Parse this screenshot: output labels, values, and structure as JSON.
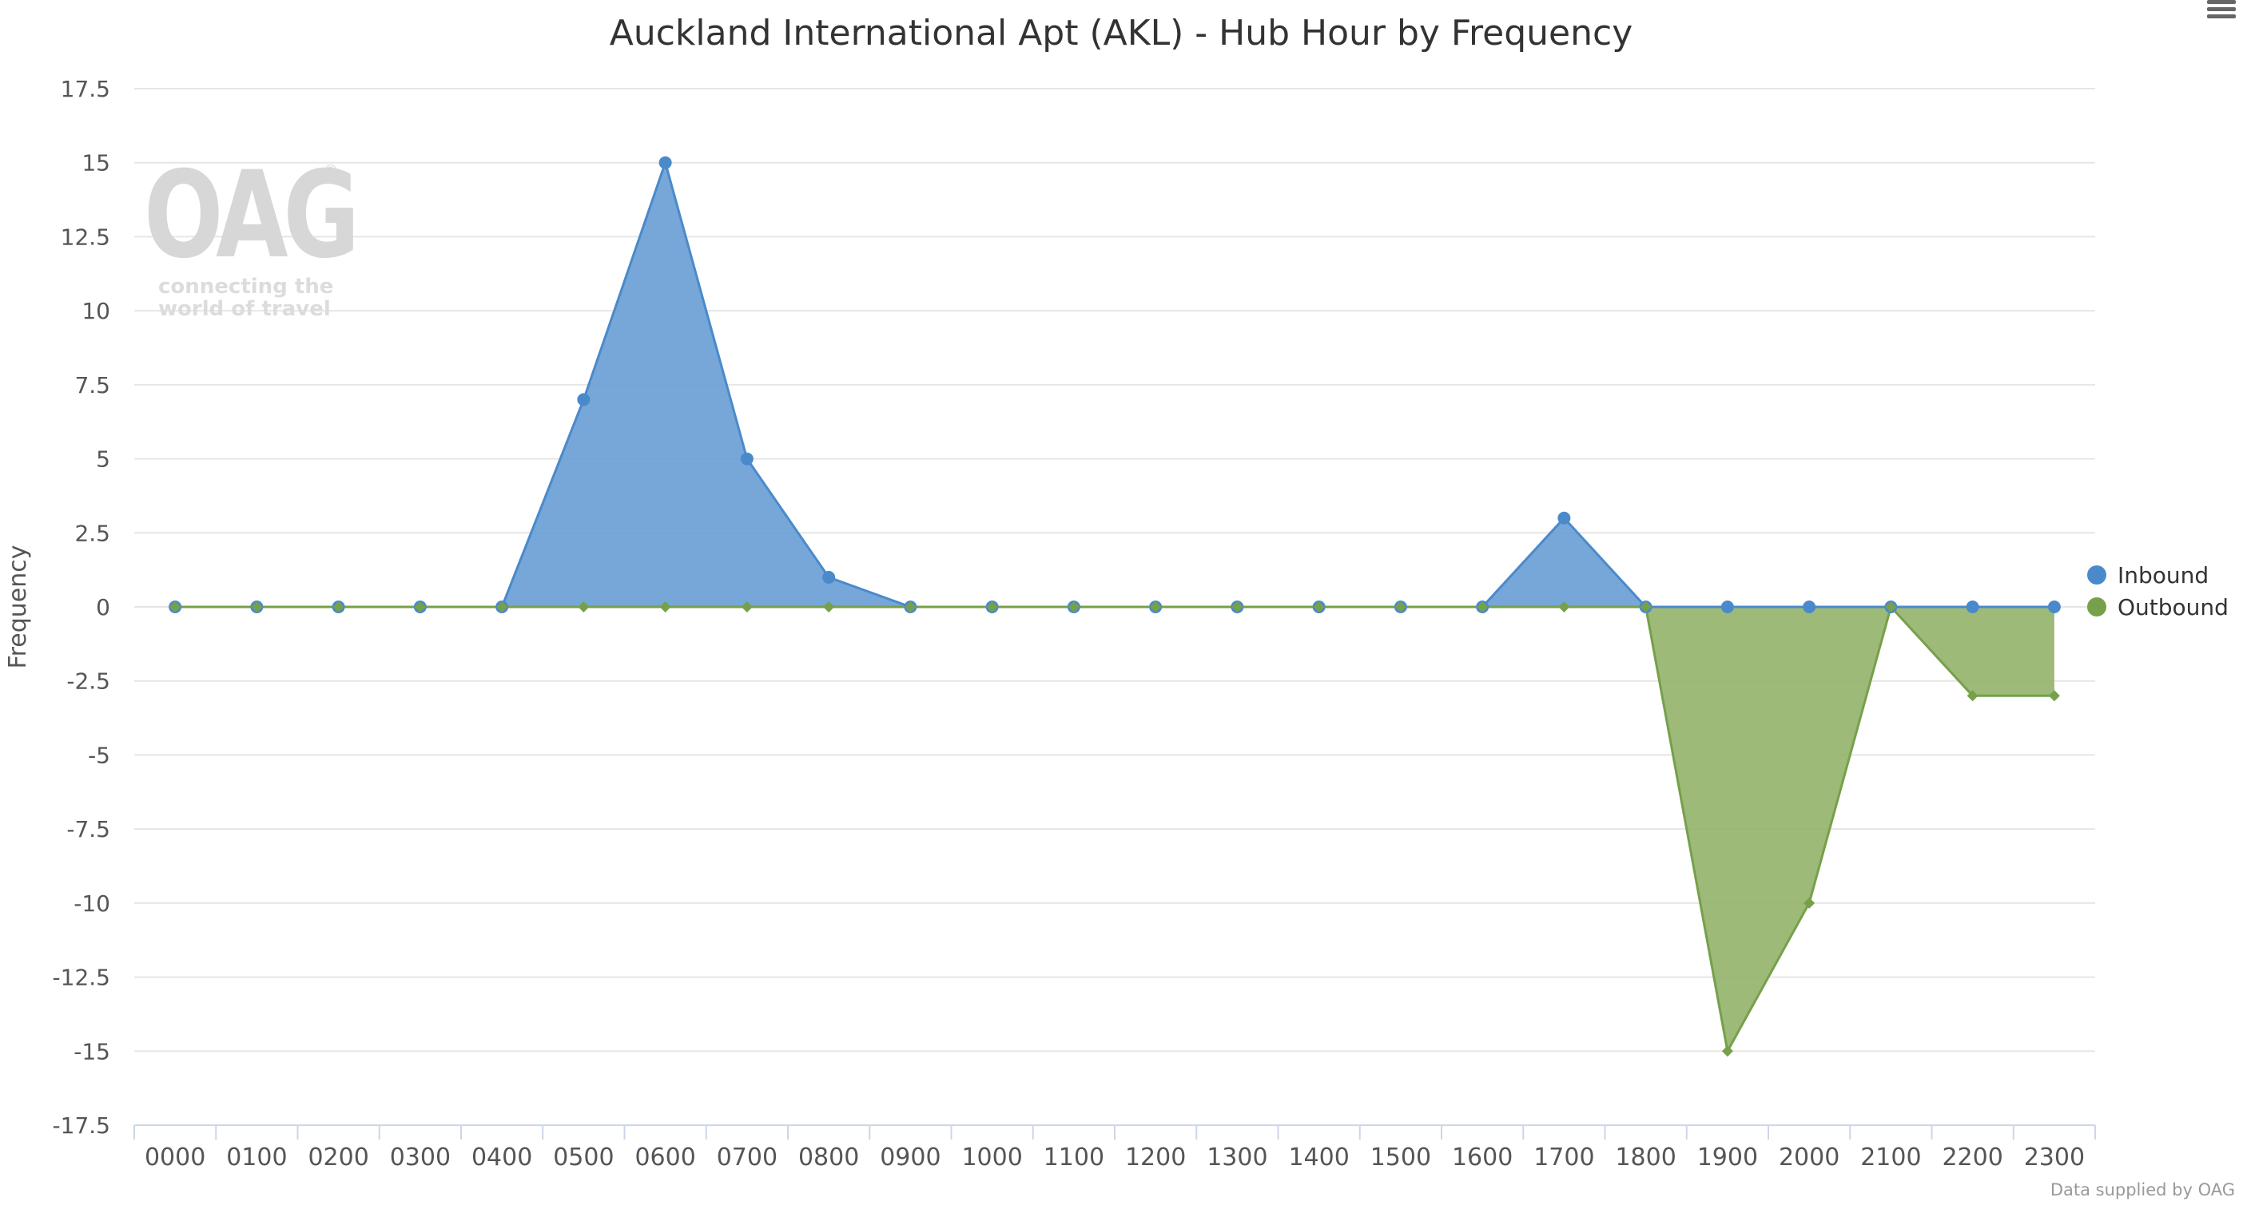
{
  "chart_data": {
    "type": "area",
    "title": "Auckland International Apt (AKL) - Hub Hour by Frequency",
    "xlabel": "",
    "ylabel": "Frequency",
    "ylim": [
      -17.5,
      17.5
    ],
    "yticks": [
      17.5,
      15,
      12.5,
      10,
      7.5,
      5,
      2.5,
      0,
      -2.5,
      -5,
      -7.5,
      -10,
      -12.5,
      -15,
      -17.5
    ],
    "ytick_labels": [
      "17.5",
      "15",
      "12.5",
      "10",
      "7.5",
      "5",
      "2.5",
      "0",
      "-2.5",
      "-5",
      "-7.5",
      "-10",
      "-12.5",
      "-15",
      "-17.5"
    ],
    "categories": [
      "0000",
      "0100",
      "0200",
      "0300",
      "0400",
      "0500",
      "0600",
      "0700",
      "0800",
      "0900",
      "1000",
      "1100",
      "1200",
      "1300",
      "1400",
      "1500",
      "1600",
      "1700",
      "1800",
      "1900",
      "2000",
      "2100",
      "2200",
      "2300"
    ],
    "grid": true,
    "legend_position": "right",
    "series": [
      {
        "name": "Inbound",
        "color": "#4a8acb",
        "fill": "#6a9fd5",
        "values": [
          0,
          0,
          0,
          0,
          0,
          7,
          15,
          5,
          1,
          0,
          0,
          0,
          0,
          0,
          0,
          0,
          0,
          3,
          0,
          0,
          0,
          0,
          0,
          0
        ]
      },
      {
        "name": "Outbound",
        "color": "#76a04a",
        "fill": "#95b46c",
        "values": [
          0,
          0,
          0,
          0,
          0,
          0,
          0,
          0,
          0,
          0,
          0,
          0,
          0,
          0,
          0,
          0,
          0,
          0,
          0,
          -15,
          -10,
          0,
          -3,
          -3
        ]
      }
    ]
  },
  "watermark": {
    "logo": "OAG",
    "registered": "®",
    "tagline_line1": "connecting the",
    "tagline_line2": "world of travel"
  },
  "credits": "Data supplied by OAG",
  "colors": {
    "grid": "#e6e6e6",
    "axis": "#ccd6eb",
    "text": "#333333",
    "tick_text": "#555555"
  }
}
